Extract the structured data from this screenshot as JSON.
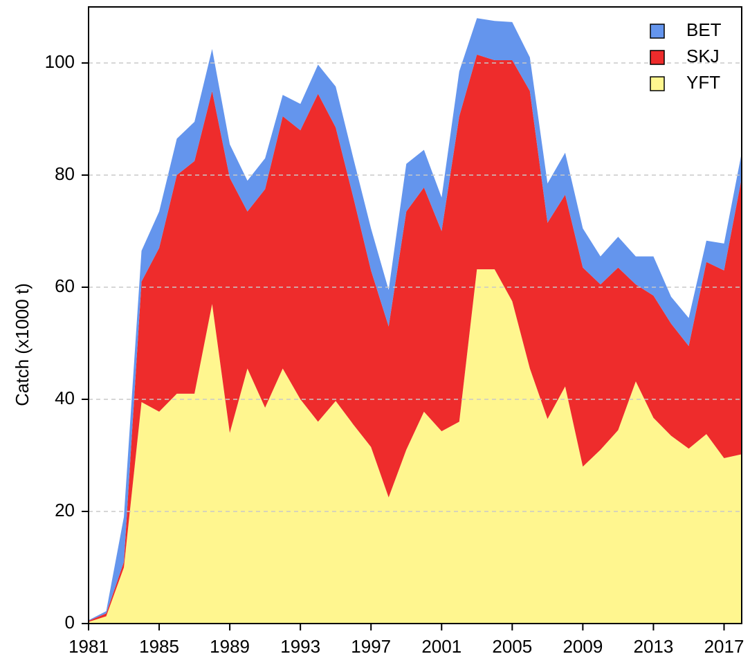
{
  "chart_data": {
    "type": "stacked_area",
    "y_label": "Catch (x1000 t)",
    "x": [
      1981,
      1982,
      1983,
      1984,
      1985,
      1986,
      1987,
      1988,
      1989,
      1990,
      1991,
      1992,
      1993,
      1994,
      1995,
      1996,
      1997,
      1998,
      1999,
      2000,
      2001,
      2002,
      2003,
      2004,
      2005,
      2006,
      2007,
      2008,
      2009,
      2010,
      2011,
      2012,
      2013,
      2014,
      2015,
      2016,
      2017,
      2018
    ],
    "series": [
      {
        "name": "YFT",
        "color": "#fff68f",
        "values": [
          0.3,
          1.3,
          10,
          39.5,
          37.8,
          41,
          41,
          57,
          34,
          45.5,
          38.5,
          45.5,
          40,
          36,
          39.7,
          35.5,
          31.5,
          22.5,
          31,
          37.8,
          34.3,
          36,
          63.2,
          63.2,
          57.5,
          45.5,
          36.5,
          42.3,
          28,
          31,
          34.5,
          43.2,
          36.7,
          33.5,
          31.2,
          33.8,
          29.5,
          30.2
        ]
      },
      {
        "name": "SKJ",
        "color": "#ee2c2c",
        "values": [
          0.2,
          0.5,
          1,
          21.5,
          29.2,
          39,
          41.5,
          38,
          45.5,
          28,
          39,
          45,
          48,
          58.5,
          48.8,
          40.5,
          31.5,
          30.5,
          42.5,
          40,
          35.7,
          54.5,
          38.3,
          37.3,
          43,
          49.5,
          35,
          34.2,
          35.5,
          29.5,
          29,
          17.3,
          21.8,
          20,
          18.3,
          30.7,
          33.5,
          49.3
        ]
      },
      {
        "name": "BET",
        "color": "#6495ed",
        "values": [
          0.1,
          0.4,
          8,
          5.5,
          6.5,
          6.5,
          7,
          7.5,
          6,
          5.5,
          5.5,
          3.8,
          4.7,
          5.2,
          7.3,
          7,
          7.5,
          6.5,
          8.5,
          6.7,
          6,
          8,
          6.5,
          7,
          6.8,
          6,
          7,
          7.5,
          7,
          5,
          5.5,
          5,
          7,
          4.8,
          5,
          3.8,
          4.8,
          4.5
        ]
      }
    ],
    "xlim": [
      1981,
      2018
    ],
    "xticks": [
      1981,
      1985,
      1989,
      1993,
      1997,
      2001,
      2005,
      2009,
      2013,
      2017
    ],
    "ylim": [
      0,
      110
    ],
    "yticks": [
      0,
      20,
      40,
      60,
      80,
      100
    ],
    "grid": true,
    "legend": "top-right"
  }
}
